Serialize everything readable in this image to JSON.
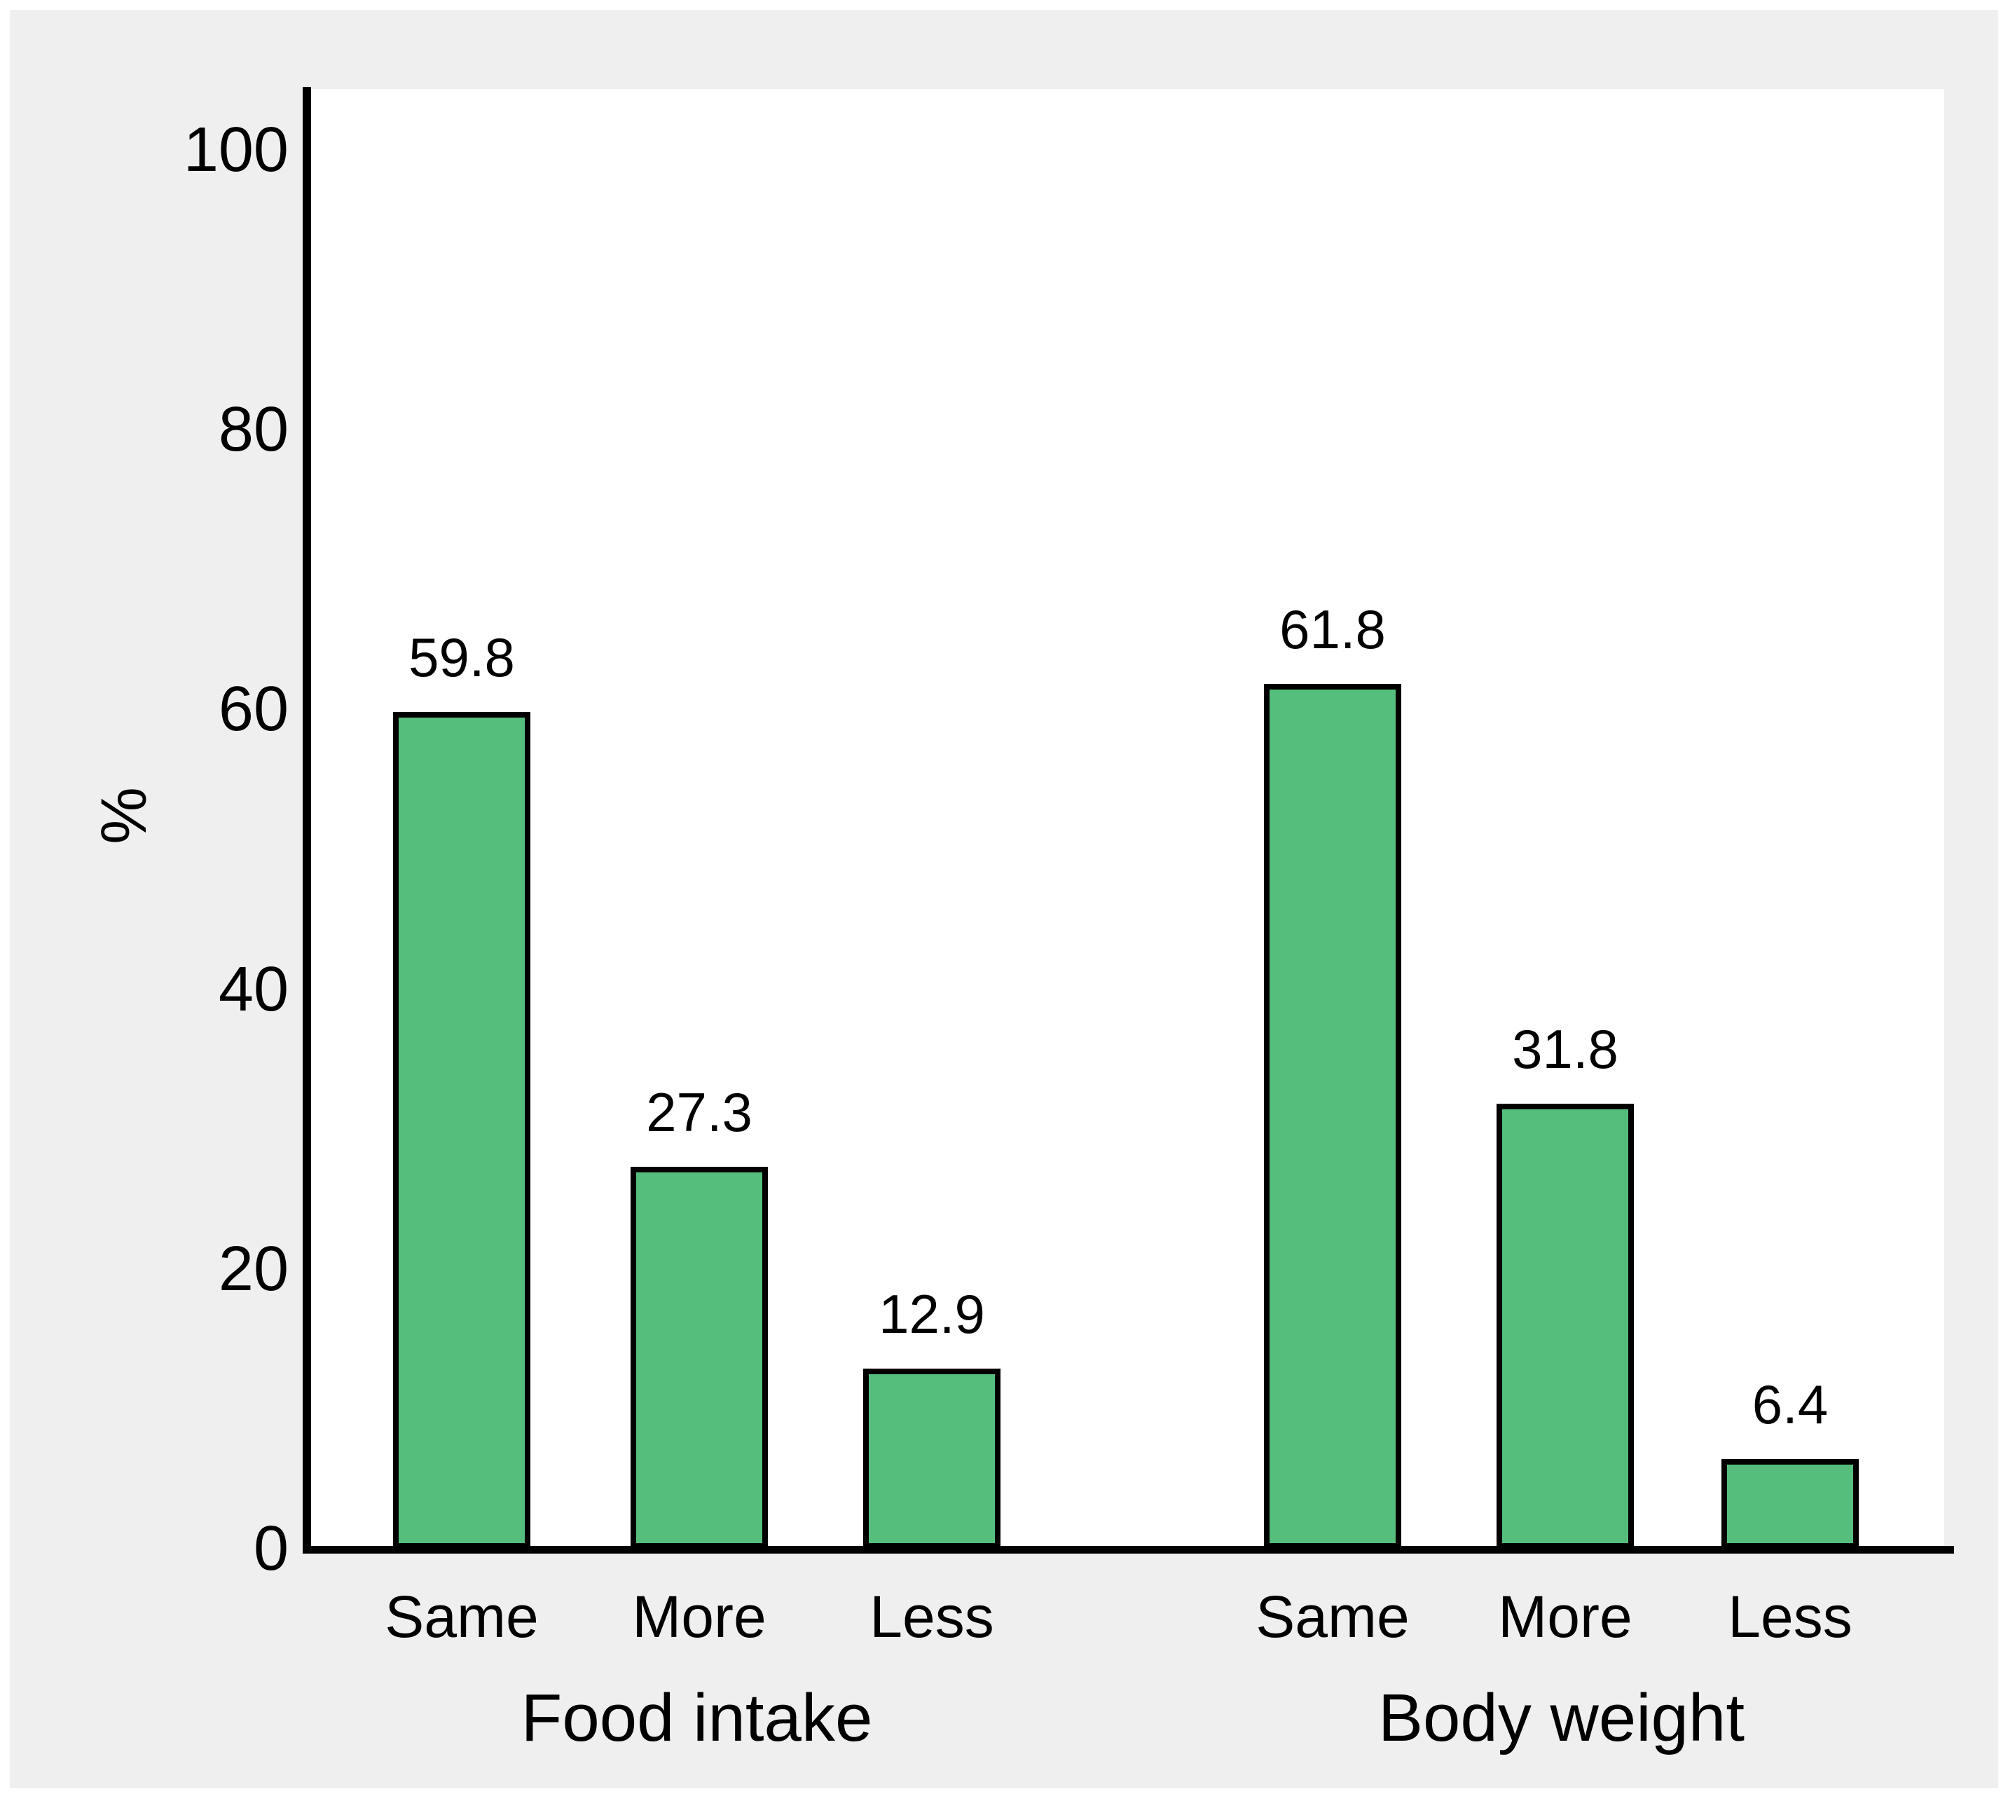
{
  "chart_data": {
    "type": "bar",
    "ylabel": "%",
    "ylim": [
      0,
      100
    ],
    "yticks": [
      "0",
      "20",
      "40",
      "60",
      "80",
      "100"
    ],
    "grid": false,
    "legend": "none",
    "background_color": "#EFEFEF",
    "plot_background_color": "#FFFFFF",
    "bar_color": "#55BE7C",
    "bar_border_color": "#000000",
    "axis_color": "#000000",
    "groups": [
      {
        "label": "Food intake",
        "categories": [
          "Same",
          "More",
          "Less"
        ],
        "values": [
          59.8,
          27.3,
          12.9
        ],
        "value_labels": [
          "59.8",
          "27.3",
          "12.9"
        ]
      },
      {
        "label": "Body weight",
        "categories": [
          "Same",
          "More",
          "Less"
        ],
        "values": [
          61.8,
          31.8,
          6.4
        ],
        "value_labels": [
          "61.8",
          "31.8",
          "6.4"
        ]
      }
    ]
  }
}
